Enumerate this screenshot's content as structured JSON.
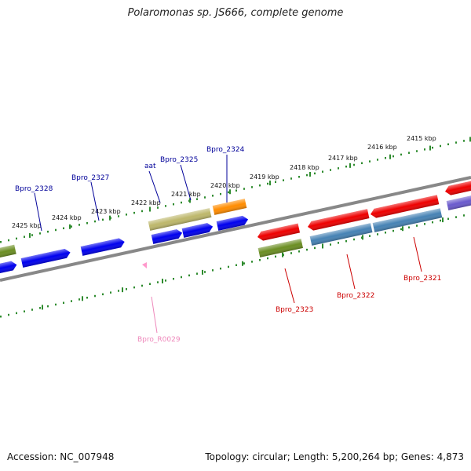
{
  "title": "Polaromonas sp. JS666, complete genome",
  "accession": "Accession: NC_007948",
  "stats": "Topology: circular; Length: 5,200,264 bp; Genes: 4,873",
  "scale": {
    "labels": [
      "2415 kbp",
      "2416 kbp",
      "2417 kbp",
      "2418 kbp",
      "2419 kbp",
      "2420 kbp",
      "2421 kbp",
      "2422 kbp",
      "2423 kbp",
      "2424 kbp",
      "2425 kbp"
    ]
  },
  "colors": {
    "backbone": "#888888",
    "ticks": "#2e8b2e",
    "blue": "#0000ee",
    "red": "#ee0000",
    "olive": "#6b8e23",
    "khaki": "#bdb76b",
    "orange": "#ff8c00",
    "steel": "#4682b4",
    "purple": "#6a5acd",
    "pink": "#ff99cc",
    "label_blue": "#000099",
    "label_red": "#cc0000",
    "label_pink": "#ee88bb"
  },
  "genes": {
    "labels": [
      {
        "name": "Bpro_2328",
        "color": "label_blue"
      },
      {
        "name": "Bpro_2327",
        "color": "label_blue"
      },
      {
        "name": "aat",
        "color": "label_blue"
      },
      {
        "name": "Bpro_2325",
        "color": "label_blue"
      },
      {
        "name": "Bpro_2324",
        "color": "label_blue"
      },
      {
        "name": "Bpro_2323",
        "color": "label_red"
      },
      {
        "name": "Bpro_2322",
        "color": "label_red"
      },
      {
        "name": "Bpro_2321",
        "color": "label_red"
      },
      {
        "name": "Bpro_R0029",
        "color": "label_pink"
      }
    ]
  }
}
